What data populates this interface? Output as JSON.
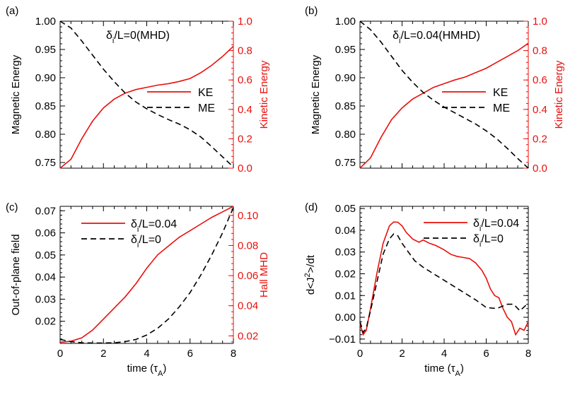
{
  "figure": {
    "colors": {
      "primary": "#000000",
      "secondary": "#e8100c",
      "background": "#ffffff"
    }
  },
  "chart_data": [
    {
      "id": "a",
      "panel_label": "(a)",
      "type": "line",
      "title": "δi/L=0(MHD)",
      "ylabel_left": "Magnetic Energy",
      "ylabel_right": "Kinetic Energy",
      "xlim": [
        0,
        8
      ],
      "ylim_left": [
        0.74,
        1.0
      ],
      "ylim_right": [
        0.0,
        1.0
      ],
      "yticks_left": [
        "0.75",
        "0.80",
        "0.85",
        "0.90",
        "0.95",
        "1.00"
      ],
      "yticks_right": [
        "0.0",
        "0.2",
        "0.4",
        "0.6",
        "0.8",
        "1.0"
      ],
      "legend_position": "center-right",
      "series": [
        {
          "name": "KE",
          "color": "#e8100c",
          "dash": "solid",
          "axis": "right",
          "x": [
            0,
            0.5,
            1,
            1.5,
            2,
            2.5,
            3,
            3.5,
            4,
            4.5,
            5,
            5.5,
            6,
            6.5,
            7,
            7.5,
            8
          ],
          "y": [
            0.0,
            0.06,
            0.2,
            0.32,
            0.41,
            0.47,
            0.51,
            0.535,
            0.55,
            0.565,
            0.575,
            0.59,
            0.61,
            0.65,
            0.7,
            0.76,
            0.83
          ]
        },
        {
          "name": "ME",
          "color": "#000000",
          "dash": "dashed",
          "axis": "left",
          "x": [
            0,
            0.5,
            1,
            1.5,
            2,
            2.5,
            3,
            3.5,
            4,
            4.5,
            5,
            5.5,
            6,
            6.5,
            7,
            7.5,
            8
          ],
          "y": [
            1.0,
            0.988,
            0.965,
            0.94,
            0.915,
            0.893,
            0.873,
            0.857,
            0.845,
            0.835,
            0.826,
            0.818,
            0.808,
            0.795,
            0.778,
            0.76,
            0.742
          ]
        }
      ]
    },
    {
      "id": "b",
      "panel_label": "(b)",
      "type": "line",
      "title": "δi/L=0.04(HMHD)",
      "ylabel_left": "Magnetic Energy",
      "ylabel_right": "Kinetic Energy",
      "xlim": [
        0,
        8
      ],
      "ylim_left": [
        0.74,
        1.0
      ],
      "ylim_right": [
        0.0,
        1.0
      ],
      "yticks_left": [
        "0.75",
        "0.80",
        "0.85",
        "0.90",
        "0.95",
        "1.00"
      ],
      "yticks_right": [
        "0.0",
        "0.2",
        "0.4",
        "0.6",
        "0.8",
        "1.0"
      ],
      "legend_position": "center-right",
      "series": [
        {
          "name": "KE",
          "color": "#e8100c",
          "dash": "solid",
          "axis": "right",
          "x": [
            0,
            0.5,
            1,
            1.5,
            2,
            2.5,
            3,
            3.5,
            4,
            4.5,
            5,
            5.5,
            6,
            6.5,
            7,
            7.5,
            8
          ],
          "y": [
            0.0,
            0.07,
            0.21,
            0.33,
            0.41,
            0.47,
            0.51,
            0.55,
            0.575,
            0.6,
            0.62,
            0.65,
            0.68,
            0.72,
            0.76,
            0.8,
            0.85
          ]
        },
        {
          "name": "ME",
          "color": "#000000",
          "dash": "dashed",
          "axis": "left",
          "x": [
            0,
            0.5,
            1,
            1.5,
            2,
            2.5,
            3,
            3.5,
            4,
            4.5,
            5,
            5.5,
            6,
            6.5,
            7,
            7.5,
            8
          ],
          "y": [
            1.0,
            0.985,
            0.963,
            0.938,
            0.913,
            0.892,
            0.874,
            0.86,
            0.848,
            0.838,
            0.828,
            0.818,
            0.806,
            0.792,
            0.775,
            0.757,
            0.74
          ]
        }
      ]
    },
    {
      "id": "c",
      "panel_label": "(c)",
      "type": "line",
      "title": "",
      "xlabel": "time (τA)",
      "ylabel_left": "Out-of-plane field",
      "ylabel_right": "Hall MHD",
      "xlim": [
        0,
        8
      ],
      "xticks": [
        "0",
        "2",
        "4",
        "6",
        "8"
      ],
      "ylim_left": [
        0.01,
        0.072
      ],
      "ylim_right": [
        0.015,
        0.106
      ],
      "yticks_left": [
        "0.02",
        "0.03",
        "0.04",
        "0.05",
        "0.06",
        "0.07"
      ],
      "yticks_right": [
        "0.02",
        "0.04",
        "0.06",
        "0.08",
        "0.10"
      ],
      "legend_position": "top-left",
      "series": [
        {
          "name": "δi/L=0.04",
          "color": "#e8100c",
          "dash": "solid",
          "axis": "left",
          "x": [
            0,
            0.5,
            1,
            1.5,
            2,
            2.5,
            3,
            3.5,
            4,
            4.5,
            5,
            5.5,
            6,
            6.5,
            7,
            7.5,
            8
          ],
          "y": [
            0.0105,
            0.011,
            0.0125,
            0.016,
            0.021,
            0.026,
            0.031,
            0.037,
            0.044,
            0.05,
            0.054,
            0.058,
            0.061,
            0.064,
            0.067,
            0.0695,
            0.072
          ]
        },
        {
          "name": "δi/L=0",
          "color": "#000000",
          "dash": "dashed",
          "axis": "left",
          "x": [
            0,
            0.5,
            1,
            1.5,
            2,
            2.5,
            3,
            3.5,
            4,
            4.5,
            5,
            5.5,
            6,
            6.5,
            7,
            7.5,
            8
          ],
          "y": [
            0.0118,
            0.0108,
            0.0103,
            0.0102,
            0.0102,
            0.0103,
            0.0108,
            0.0118,
            0.0138,
            0.0168,
            0.021,
            0.0265,
            0.033,
            0.041,
            0.05,
            0.06,
            0.0715
          ]
        }
      ]
    },
    {
      "id": "d",
      "panel_label": "(d)",
      "type": "line",
      "title": "",
      "xlabel": "time (τA)",
      "ylabel_left": "d<J2>/dt",
      "xlim": [
        0,
        8
      ],
      "xticks": [
        "0",
        "2",
        "4",
        "6",
        "8"
      ],
      "ylim_left": [
        -0.012,
        0.051
      ],
      "yticks_left": [
        "−0.01",
        "0.00",
        "0.01",
        "0.02",
        "0.03",
        "0.04",
        "0.05"
      ],
      "legend_position": "top-right",
      "series": [
        {
          "name": "δi/L=0.04",
          "color": "#e8100c",
          "dash": "solid",
          "axis": "left",
          "x": [
            0,
            0.15,
            0.3,
            0.5,
            0.8,
            1.1,
            1.4,
            1.6,
            1.8,
            2.0,
            2.2,
            2.5,
            2.8,
            3.0,
            3.3,
            3.6,
            4.0,
            4.3,
            4.6,
            4.9,
            5.2,
            5.5,
            5.8,
            6.0,
            6.2,
            6.4,
            6.6,
            6.8,
            7.0,
            7.2,
            7.4,
            7.6,
            7.8,
            8.0
          ],
          "y": [
            -0.003,
            -0.008,
            -0.006,
            0.004,
            0.02,
            0.034,
            0.042,
            0.0438,
            0.0437,
            0.042,
            0.039,
            0.036,
            0.0345,
            0.0355,
            0.034,
            0.033,
            0.031,
            0.029,
            0.028,
            0.0275,
            0.027,
            0.025,
            0.0215,
            0.018,
            0.013,
            0.01,
            0.009,
            0.004,
            0.0,
            -0.002,
            -0.008,
            -0.005,
            -0.006,
            -0.002
          ]
        },
        {
          "name": "δi/L=0",
          "color": "#000000",
          "dash": "dashed",
          "axis": "left",
          "x": [
            0,
            0.15,
            0.3,
            0.5,
            0.8,
            1.1,
            1.4,
            1.6,
            1.8,
            2.0,
            2.3,
            2.6,
            3.0,
            3.5,
            4.0,
            4.5,
            5.0,
            5.5,
            6.0,
            6.5,
            7.0,
            7.3,
            7.6,
            8.0
          ],
          "y": [
            -0.002,
            -0.007,
            -0.005,
            0.003,
            0.016,
            0.029,
            0.036,
            0.0383,
            0.0375,
            0.034,
            0.03,
            0.026,
            0.023,
            0.02,
            0.017,
            0.014,
            0.011,
            0.008,
            0.0045,
            0.004,
            0.006,
            0.006,
            0.003,
            0.0065
          ]
        }
      ]
    }
  ]
}
